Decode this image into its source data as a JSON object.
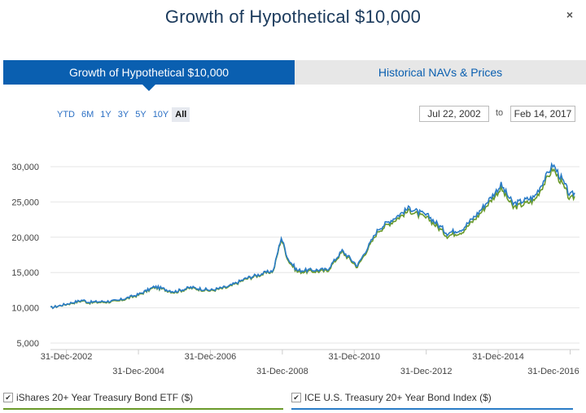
{
  "dialog": {
    "title": "Growth of Hypothetical $10,000",
    "close_icon": "×"
  },
  "tabs": [
    {
      "label": "Growth of Hypothetical $10,000",
      "active": true
    },
    {
      "label": "Historical NAVs & Prices",
      "active": false
    }
  ],
  "range_buttons": [
    "YTD",
    "6M",
    "1Y",
    "3Y",
    "5Y",
    "10Y",
    "All"
  ],
  "selected_range": "All",
  "date_range": {
    "from": "Jul 22, 2002",
    "to_label": "to",
    "to": "Feb 14, 2017"
  },
  "colors": {
    "accent": "#0a5fb0",
    "series_index": "#2a7cc7",
    "series_etf": "#6a9a2a",
    "grid": "#e6e6e6"
  },
  "chart_data": {
    "type": "line",
    "x_ticks_row1": [
      "31-Dec-2002",
      "31-Dec-2006",
      "31-Dec-2010",
      "31-Dec-2014"
    ],
    "x_ticks_row2": [
      "31-Dec-2004",
      "31-Dec-2008",
      "31-Dec-2012",
      "31-Dec-2016"
    ],
    "y_ticks": [
      "5,000",
      "10,000",
      "15,000",
      "20,000",
      "25,000",
      "30,000"
    ],
    "ylim": [
      4000,
      31500
    ],
    "xlim": [
      "2002-07-22",
      "2017-02-14"
    ],
    "series": [
      {
        "name": "iShares 20+ Year Treasury Bond ETF ($)",
        "checked": true,
        "points": [
          [
            "2002-07-22",
            10000
          ],
          [
            "2003-06-15",
            11000
          ],
          [
            "2003-08-15",
            10700
          ],
          [
            "2004-06-01",
            10900
          ],
          [
            "2005-01-01",
            11800
          ],
          [
            "2005-06-15",
            12900
          ],
          [
            "2006-01-01",
            12200
          ],
          [
            "2006-06-15",
            12800
          ],
          [
            "2007-01-01",
            12400
          ],
          [
            "2007-07-01",
            12900
          ],
          [
            "2008-01-01",
            14100
          ],
          [
            "2008-10-01",
            15200
          ],
          [
            "2008-12-20",
            19800
          ],
          [
            "2009-03-01",
            16700
          ],
          [
            "2009-06-01",
            15100
          ],
          [
            "2010-04-01",
            15200
          ],
          [
            "2010-08-30",
            17900
          ],
          [
            "2011-02-01",
            15800
          ],
          [
            "2011-09-01",
            20900
          ],
          [
            "2012-07-15",
            23800
          ],
          [
            "2012-10-01",
            23200
          ],
          [
            "2013-02-01",
            22500
          ],
          [
            "2013-08-01",
            20200
          ],
          [
            "2014-01-01",
            20800
          ],
          [
            "2014-06-01",
            22900
          ],
          [
            "2015-01-30",
            26900
          ],
          [
            "2015-06-01",
            24200
          ],
          [
            "2016-01-01",
            25200
          ],
          [
            "2016-07-08",
            29700
          ],
          [
            "2016-10-01",
            27800
          ],
          [
            "2017-01-01",
            25300
          ],
          [
            "2017-02-14",
            25800
          ]
        ]
      },
      {
        "name": "ICE U.S. Treasury 20+ Year Bond Index ($)",
        "checked": true,
        "points": [
          [
            "2002-07-22",
            10000
          ],
          [
            "2003-06-15",
            11100
          ],
          [
            "2003-08-15",
            10800
          ],
          [
            "2004-06-01",
            11000
          ],
          [
            "2005-01-01",
            11900
          ],
          [
            "2005-06-15",
            13000
          ],
          [
            "2006-01-01",
            12300
          ],
          [
            "2006-06-15",
            12900
          ],
          [
            "2007-01-01",
            12500
          ],
          [
            "2007-07-01",
            13000
          ],
          [
            "2008-01-01",
            14200
          ],
          [
            "2008-10-01",
            15300
          ],
          [
            "2008-12-20",
            20000
          ],
          [
            "2009-03-01",
            16900
          ],
          [
            "2009-06-01",
            15300
          ],
          [
            "2010-04-01",
            15400
          ],
          [
            "2010-08-30",
            18100
          ],
          [
            "2011-02-01",
            16000
          ],
          [
            "2011-09-01",
            21200
          ],
          [
            "2012-07-15",
            24200
          ],
          [
            "2012-10-01",
            23600
          ],
          [
            "2013-02-01",
            22900
          ],
          [
            "2013-08-01",
            20600
          ],
          [
            "2014-01-01",
            21200
          ],
          [
            "2014-06-01",
            23300
          ],
          [
            "2015-01-30",
            27400
          ],
          [
            "2015-06-01",
            24700
          ],
          [
            "2016-01-01",
            25700
          ],
          [
            "2016-07-08",
            30300
          ],
          [
            "2016-10-01",
            28400
          ],
          [
            "2017-01-01",
            25900
          ],
          [
            "2017-02-14",
            26300
          ]
        ]
      }
    ]
  }
}
